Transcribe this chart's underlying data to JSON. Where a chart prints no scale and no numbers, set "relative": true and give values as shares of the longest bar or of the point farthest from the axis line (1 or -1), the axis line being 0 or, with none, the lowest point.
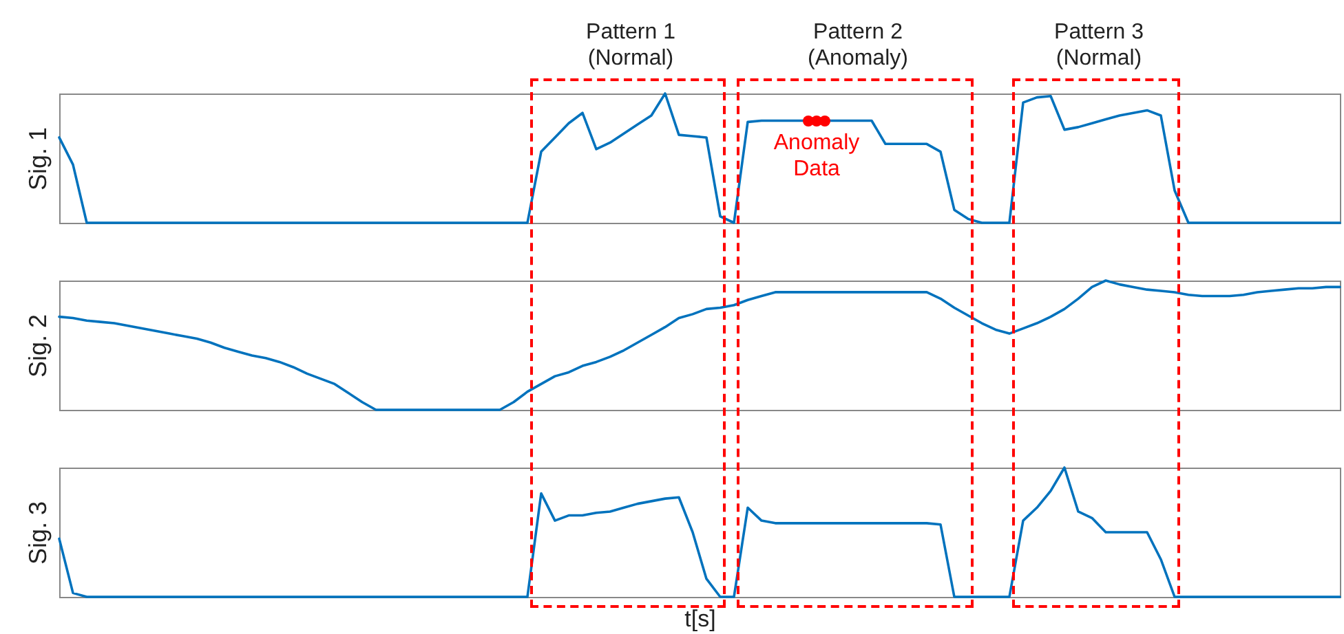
{
  "chart_data": [
    {
      "type": "line",
      "ylabel": "Sig. 1",
      "relative": true,
      "tick_labels": false,
      "grid": false,
      "categories": [
        null,
        null,
        null,
        null,
        null,
        null,
        null,
        null,
        null,
        null,
        null,
        null,
        null,
        null,
        null,
        null,
        null,
        null,
        null,
        null,
        null,
        null,
        null,
        null,
        null,
        null,
        null,
        null,
        null,
        null,
        null,
        null,
        null,
        null,
        null,
        null,
        null,
        null,
        null,
        null,
        null,
        null,
        null,
        null,
        null,
        null,
        null,
        null,
        null,
        null,
        null,
        null,
        null,
        null,
        null,
        null,
        null,
        null,
        null,
        null,
        null,
        null,
        null,
        null,
        null,
        null,
        null,
        null,
        null,
        null,
        null,
        null,
        null,
        null,
        null,
        null,
        null,
        null,
        null,
        null,
        null,
        null,
        null,
        null,
        null,
        null,
        null,
        null,
        null,
        null,
        null,
        null,
        null,
        null
      ],
      "series": [
        {
          "color": "#0072bd",
          "values": [
            0.66,
            0.45,
            0,
            0,
            0,
            0,
            0,
            0,
            0,
            0,
            0,
            0,
            0,
            0,
            0,
            0,
            0,
            0,
            0,
            0,
            0,
            0,
            0,
            0,
            0,
            0,
            0,
            0,
            0,
            0,
            0,
            0,
            0,
            0,
            0,
            0.55,
            0.66,
            0.77,
            0.85,
            0.57,
            0.62,
            0.69,
            0.76,
            0.83,
            1,
            0.68,
            0.67,
            0.66,
            0.05,
            0,
            0.78,
            0.79,
            0.79,
            0.79,
            0.79,
            0.79,
            0.79,
            0.79,
            0.79,
            0.79,
            0.61,
            0.61,
            0.61,
            0.61,
            0.55,
            0.1,
            0.03,
            0,
            0,
            0,
            0.93,
            0.97,
            0.98,
            0.72,
            0.74,
            0.77,
            0.8,
            0.83,
            0.85,
            0.87,
            0.83,
            0.25,
            0,
            0,
            0,
            0,
            0,
            0,
            0,
            0,
            0,
            0,
            0,
            0
          ]
        }
      ],
      "annotations": [
        "Pattern 1\n(Normal)",
        "Pattern 2\n(Anomaly)",
        "Pattern 3\n(Normal)",
        {
          "text": "Anomaly\nData",
          "y": 0.79
        }
      ]
    },
    {
      "type": "line",
      "ylabel": "Sig. 2",
      "relative": true,
      "tick_labels": false,
      "grid": false,
      "categories": [
        null,
        null,
        null,
        null,
        null,
        null,
        null,
        null,
        null,
        null,
        null,
        null,
        null,
        null,
        null,
        null,
        null,
        null,
        null,
        null,
        null,
        null,
        null,
        null,
        null,
        null,
        null,
        null,
        null,
        null,
        null,
        null,
        null,
        null,
        null,
        null,
        null,
        null,
        null,
        null,
        null,
        null,
        null,
        null,
        null,
        null,
        null,
        null,
        null,
        null,
        null,
        null,
        null,
        null,
        null,
        null,
        null,
        null,
        null,
        null,
        null,
        null,
        null,
        null,
        null,
        null,
        null,
        null,
        null,
        null,
        null,
        null,
        null,
        null,
        null,
        null,
        null,
        null,
        null,
        null,
        null,
        null,
        null,
        null,
        null,
        null,
        null,
        null,
        null,
        null,
        null,
        null,
        null,
        null
      ],
      "series": [
        {
          "color": "#0072bd",
          "values": [
            0.72,
            0.71,
            0.69,
            0.68,
            0.67,
            0.65,
            0.63,
            0.61,
            0.59,
            0.57,
            0.55,
            0.52,
            0.48,
            0.45,
            0.42,
            0.4,
            0.37,
            0.33,
            0.28,
            0.24,
            0.2,
            0.13,
            0.06,
            0,
            0,
            0,
            0,
            0,
            0,
            0,
            0,
            0,
            0,
            0.06,
            0.14,
            0.2,
            0.26,
            0.29,
            0.34,
            0.37,
            0.41,
            0.46,
            0.52,
            0.58,
            0.64,
            0.71,
            0.74,
            0.78,
            0.79,
            0.81,
            0.85,
            0.88,
            0.91,
            0.91,
            0.91,
            0.91,
            0.91,
            0.91,
            0.91,
            0.91,
            0.91,
            0.91,
            0.91,
            0.91,
            0.86,
            0.79,
            0.73,
            0.67,
            0.62,
            0.59,
            0.63,
            0.67,
            0.72,
            0.78,
            0.86,
            0.95,
            1,
            0.97,
            0.95,
            0.93,
            0.92,
            0.91,
            0.89,
            0.88,
            0.88,
            0.88,
            0.89,
            0.91,
            0.92,
            0.93,
            0.94,
            0.94,
            0.95,
            0.95
          ]
        }
      ]
    },
    {
      "type": "line",
      "ylabel": "Sig. 3",
      "xlabel": "t[s]",
      "relative": true,
      "tick_labels": false,
      "grid": false,
      "categories": [
        null,
        null,
        null,
        null,
        null,
        null,
        null,
        null,
        null,
        null,
        null,
        null,
        null,
        null,
        null,
        null,
        null,
        null,
        null,
        null,
        null,
        null,
        null,
        null,
        null,
        null,
        null,
        null,
        null,
        null,
        null,
        null,
        null,
        null,
        null,
        null,
        null,
        null,
        null,
        null,
        null,
        null,
        null,
        null,
        null,
        null,
        null,
        null,
        null,
        null,
        null,
        null,
        null,
        null,
        null,
        null,
        null,
        null,
        null,
        null,
        null,
        null,
        null,
        null,
        null,
        null,
        null,
        null,
        null,
        null,
        null,
        null,
        null,
        null,
        null,
        null,
        null,
        null,
        null,
        null,
        null,
        null,
        null,
        null,
        null,
        null,
        null,
        null,
        null,
        null,
        null,
        null,
        null,
        null
      ],
      "series": [
        {
          "color": "#0072bd",
          "values": [
            0.45,
            0.03,
            0,
            0,
            0,
            0,
            0,
            0,
            0,
            0,
            0,
            0,
            0,
            0,
            0,
            0,
            0,
            0,
            0,
            0,
            0,
            0,
            0,
            0,
            0,
            0,
            0,
            0,
            0,
            0,
            0,
            0,
            0,
            0,
            0,
            0.8,
            0.59,
            0.63,
            0.63,
            0.65,
            0.66,
            0.69,
            0.72,
            0.74,
            0.76,
            0.77,
            0.5,
            0.14,
            0,
            0,
            0.69,
            0.59,
            0.57,
            0.57,
            0.57,
            0.57,
            0.57,
            0.57,
            0.57,
            0.57,
            0.57,
            0.57,
            0.57,
            0.57,
            0.56,
            0,
            0,
            0,
            0,
            0,
            0.59,
            0.69,
            0.82,
            1,
            0.66,
            0.61,
            0.5,
            0.5,
            0.5,
            0.5,
            0.29,
            0,
            0,
            0,
            0,
            0,
            0,
            0,
            0,
            0,
            0,
            0,
            0,
            0
          ]
        }
      ]
    }
  ]
}
